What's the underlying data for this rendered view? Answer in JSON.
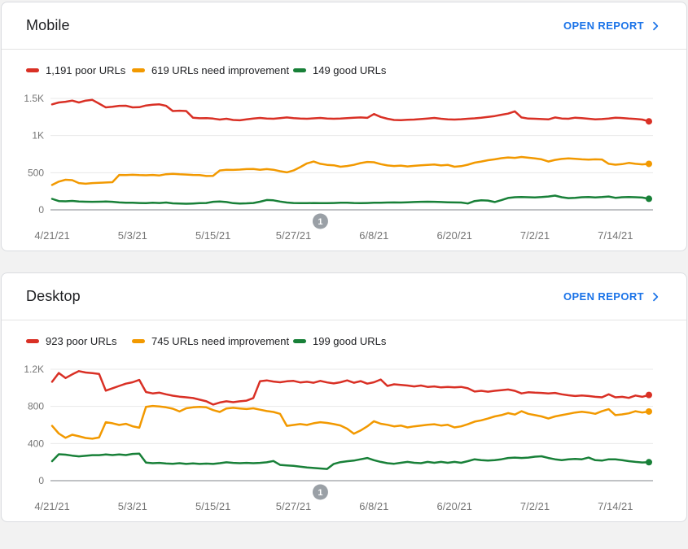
{
  "page": {
    "background": "#f2f2f2"
  },
  "colors": {
    "poor": "#d93025",
    "needs_improvement": "#f29900",
    "good": "#188038",
    "link": "#1a73e8",
    "gridline": "#e8e8e8",
    "axis_line": "#80868b",
    "axis_text": "#757575",
    "annotation_badge": "#9aa0a6"
  },
  "cards": [
    {
      "title": "Mobile",
      "open_report": {
        "label": "OPEN REPORT",
        "icon": "chevron-right"
      },
      "legend": [
        {
          "label": "1,191 poor URLs",
          "color": "#d93025"
        },
        {
          "label": "619 URLs need improvement",
          "color": "#f29900"
        },
        {
          "label": "149 good URLs",
          "color": "#188038"
        }
      ],
      "chart_data": {
        "type": "line",
        "title": "Mobile Core Web Vitals URLs over time",
        "x_tick_labels": [
          "4/21/21",
          "5/3/21",
          "5/15/21",
          "5/27/21",
          "6/8/21",
          "6/20/21",
          "7/2/21",
          "7/14/21"
        ],
        "x_tick_days": [
          0,
          12,
          24,
          36,
          48,
          60,
          72,
          84
        ],
        "days": 90,
        "ylim": [
          0,
          1500
        ],
        "y_ticks": [
          {
            "value": 0,
            "label": "0"
          },
          {
            "value": 500,
            "label": "500"
          },
          {
            "value": 1000,
            "label": "1K"
          },
          {
            "value": 1500,
            "label": "1.5K"
          }
        ],
        "grid": true,
        "legend_position": "top",
        "annotation": {
          "label": "1",
          "day": 40
        },
        "series": [
          {
            "name": "poor URLs",
            "color": "#d93025",
            "end_value": 1191,
            "values": [
              1420,
              1445,
              1455,
              1470,
              1445,
              1470,
              1480,
              1430,
              1380,
              1388,
              1400,
              1402,
              1380,
              1382,
              1405,
              1415,
              1420,
              1400,
              1330,
              1335,
              1330,
              1240,
              1233,
              1235,
              1228,
              1215,
              1226,
              1210,
              1205,
              1218,
              1230,
              1237,
              1230,
              1226,
              1235,
              1244,
              1235,
              1230,
              1226,
              1232,
              1237,
              1230,
              1226,
              1230,
              1235,
              1240,
              1244,
              1238,
              1290,
              1250,
              1226,
              1210,
              1207,
              1212,
              1215,
              1222,
              1230,
              1237,
              1226,
              1218,
              1215,
              1220,
              1226,
              1232,
              1240,
              1252,
              1262,
              1280,
              1295,
              1326,
              1244,
              1228,
              1226,
              1222,
              1218,
              1244,
              1230,
              1226,
              1240,
              1235,
              1226,
              1218,
              1222,
              1228,
              1240,
              1236,
              1228,
              1224,
              1215,
              1191
            ]
          },
          {
            "name": "URLs need improvement",
            "color": "#f29900",
            "end_value": 619,
            "values": [
              335,
              380,
              405,
              400,
              360,
              352,
              360,
              365,
              368,
              372,
              470,
              468,
              472,
              468,
              465,
              470,
              463,
              480,
              485,
              478,
              475,
              470,
              468,
              455,
              458,
              530,
              540,
              538,
              542,
              548,
              551,
              540,
              548,
              540,
              520,
              505,
              530,
              575,
              625,
              650,
              620,
              605,
              600,
              580,
              590,
              605,
              630,
              645,
              640,
              615,
              598,
              590,
              596,
              585,
              592,
              600,
              605,
              610,
              598,
              605,
              580,
              588,
              608,
              635,
              650,
              668,
              680,
              695,
              705,
              700,
              712,
              702,
              692,
              680,
              650,
              672,
              685,
              692,
              688,
              680,
              675,
              680,
              678,
              620,
              608,
              615,
              632,
              620,
              612,
              619
            ]
          },
          {
            "name": "good URLs",
            "color": "#188038",
            "end_value": 149,
            "values": [
              148,
              118,
              115,
              120,
              112,
              110,
              108,
              110,
              112,
              108,
              100,
              95,
              95,
              92,
              90,
              95,
              92,
              98,
              88,
              85,
              82,
              85,
              90,
              92,
              108,
              112,
              105,
              90,
              85,
              88,
              92,
              110,
              132,
              128,
              112,
              98,
              92,
              90,
              90,
              92,
              90,
              90,
              92,
              95,
              96,
              92,
              90,
              92,
              95,
              96,
              98,
              100,
              99,
              102,
              105,
              108,
              110,
              108,
              105,
              102,
              100,
              99,
              85,
              118,
              128,
              125,
              105,
              130,
              160,
              170,
              172,
              170,
              168,
              172,
              180,
              192,
              170,
              158,
              162,
              170,
              172,
              168,
              172,
              180,
              162,
              170,
              172,
              170,
              165,
              149
            ]
          }
        ]
      }
    },
    {
      "title": "Desktop",
      "open_report": {
        "label": "OPEN REPORT",
        "icon": "chevron-right"
      },
      "legend": [
        {
          "label": "923 poor URLs",
          "color": "#d93025"
        },
        {
          "label": "745 URLs need improvement",
          "color": "#f29900"
        },
        {
          "label": "199 good URLs",
          "color": "#188038"
        }
      ],
      "chart_data": {
        "type": "line",
        "title": "Desktop Core Web Vitals URLs over time",
        "x_tick_labels": [
          "4/21/21",
          "5/3/21",
          "5/15/21",
          "5/27/21",
          "6/8/21",
          "6/20/21",
          "7/2/21",
          "7/14/21"
        ],
        "x_tick_days": [
          0,
          12,
          24,
          36,
          48,
          60,
          72,
          84
        ],
        "days": 90,
        "ylim": [
          0,
          1200
        ],
        "y_ticks": [
          {
            "value": 0,
            "label": "0"
          },
          {
            "value": 400,
            "label": "400"
          },
          {
            "value": 800,
            "label": "800"
          },
          {
            "value": 1200,
            "label": "1.2K"
          }
        ],
        "grid": true,
        "legend_position": "top",
        "annotation": {
          "label": "1",
          "day": 40
        },
        "series": [
          {
            "name": "poor URLs",
            "color": "#d93025",
            "end_value": 923,
            "values": [
              1065,
              1160,
              1105,
              1145,
              1180,
              1165,
              1158,
              1150,
              970,
              995,
              1020,
              1045,
              1060,
              1085,
              955,
              940,
              948,
              930,
              915,
              905,
              898,
              890,
              872,
              855,
              820,
              842,
              855,
              845,
              855,
              862,
              890,
              1070,
              1080,
              1068,
              1060,
              1070,
              1075,
              1058,
              1065,
              1055,
              1075,
              1058,
              1048,
              1060,
              1080,
              1055,
              1072,
              1045,
              1060,
              1090,
              1020,
              1038,
              1032,
              1025,
              1015,
              1025,
              1010,
              1015,
              1005,
              1010,
              1005,
              1010,
              995,
              960,
              968,
              958,
              968,
              975,
              982,
              968,
              940,
              952,
              948,
              945,
              940,
              945,
              930,
              920,
              912,
              917,
              912,
              903,
              898,
              930,
              898,
              903,
              892,
              917,
              903,
              923
            ]
          },
          {
            "name": "URLs need improvement",
            "color": "#f29900",
            "end_value": 745,
            "values": [
              590,
              508,
              462,
              495,
              478,
              460,
              452,
              465,
              630,
              618,
              600,
              612,
              586,
              570,
              795,
              805,
              800,
              790,
              775,
              745,
              780,
              790,
              795,
              790,
              760,
              740,
              778,
              785,
              778,
              772,
              780,
              765,
              750,
              740,
              720,
              590,
              600,
              610,
              600,
              618,
              630,
              622,
              610,
              595,
              560,
              505,
              540,
              585,
              640,
              613,
              602,
              585,
              594,
              574,
              585,
              594,
              602,
              608,
              594,
              602,
              574,
              585,
              608,
              636,
              650,
              669,
              692,
              706,
              728,
              712,
              748,
              720,
              706,
              692,
              669,
              692,
              706,
              720,
              734,
              742,
              734,
              720,
              748,
              770,
              706,
              714,
              725,
              748,
              734,
              745
            ]
          },
          {
            "name": "good URLs",
            "color": "#188038",
            "end_value": 199,
            "values": [
              210,
              285,
              280,
              270,
              262,
              268,
              275,
              275,
              282,
              276,
              282,
              276,
              288,
              292,
              195,
              188,
              192,
              185,
              182,
              188,
              180,
              186,
              180,
              184,
              180,
              188,
              198,
              192,
              188,
              192,
              188,
              192,
              198,
              212,
              170,
              165,
              160,
              151,
              143,
              137,
              131,
              126,
              180,
              200,
              209,
              216,
              230,
              244,
              221,
              202,
              188,
              182,
              193,
              202,
              193,
              188,
              202,
              193,
              202,
              193,
              202,
              193,
              210,
              230,
              221,
              216,
              221,
              230,
              244,
              249,
              244,
              249,
              258,
              263,
              244,
              230,
              221,
              230,
              235,
              230,
              249,
              221,
              216,
              230,
              230,
              221,
              210,
              202,
              196,
              199
            ]
          }
        ]
      }
    }
  ]
}
